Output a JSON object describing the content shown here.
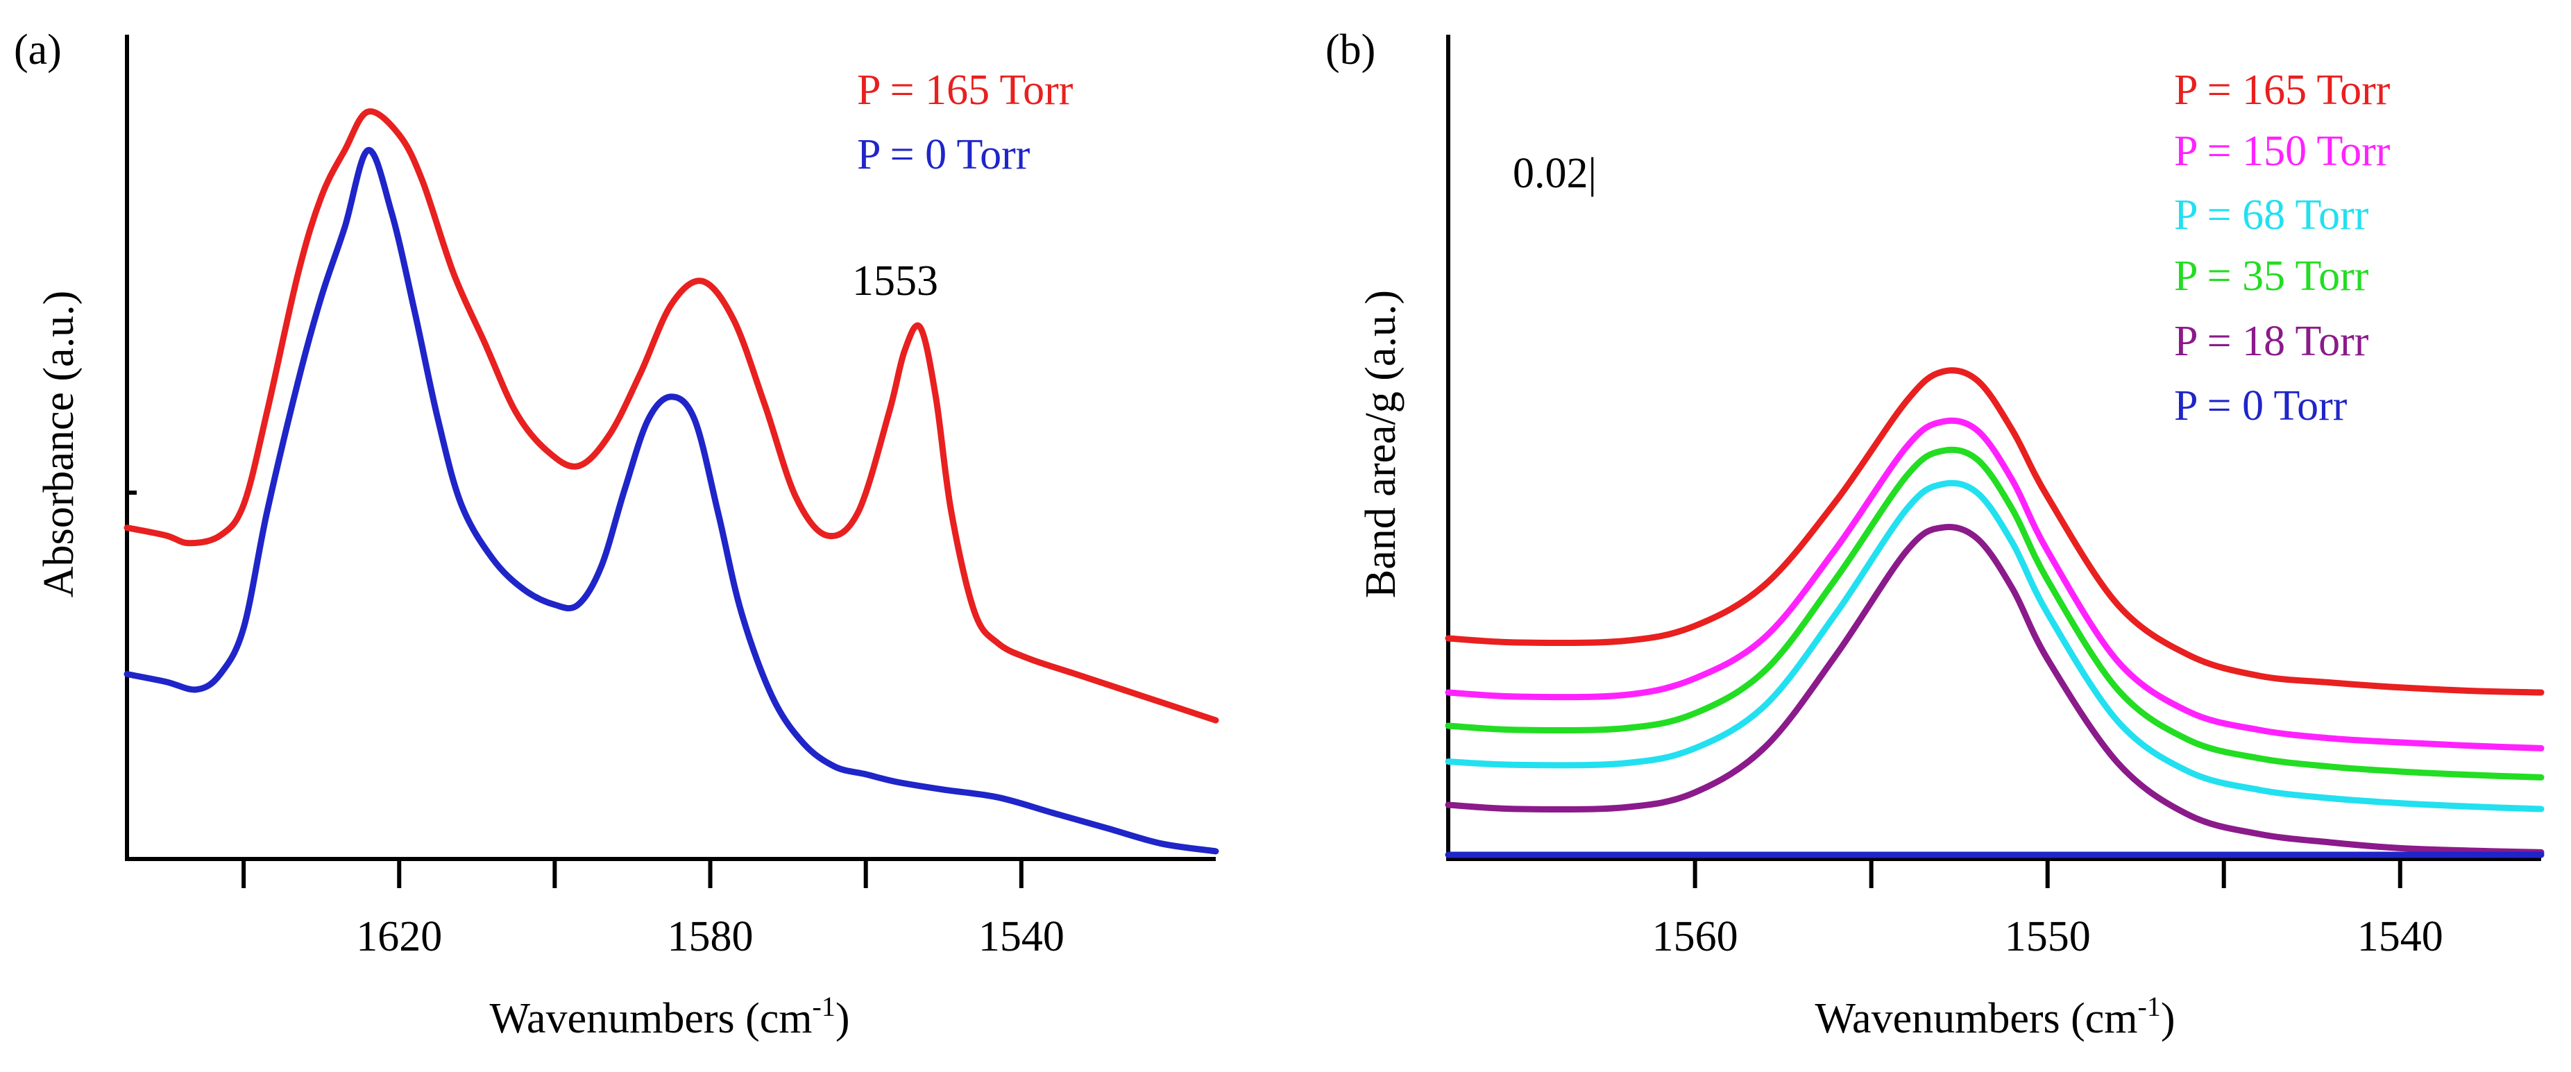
{
  "chart_data": [
    {
      "panel_label": "(a)",
      "type": "line",
      "title": "",
      "xlabel": "Wavenumbers (cm",
      "xlabel_sup": "-1",
      "xlabel_end": ")",
      "ylabel": "Absorbance (a.u.)",
      "xlim": [
        1655,
        1515
      ],
      "ylim": [
        0.0,
        1.07
      ],
      "grid": false,
      "legend_position": "top-right",
      "xticks_major": [
        1620,
        1580,
        1540
      ],
      "xticks_minor": [
        1640,
        1600,
        1560
      ],
      "xtick_labels": [
        "1620",
        "1580",
        "1540"
      ],
      "yticks": [],
      "annotations": [
        {
          "text": "1553",
          "x": 1553,
          "y": 0.73
        }
      ],
      "series": [
        {
          "name": "P = 165 Torr",
          "color": "#e8201f",
          "x": [
            1655,
            1650,
            1647,
            1643,
            1640,
            1637,
            1633,
            1630,
            1627,
            1624,
            1620,
            1617,
            1613,
            1609,
            1605,
            1601,
            1597,
            1593,
            1589,
            1585,
            1581,
            1577,
            1573,
            1569,
            1565,
            1561,
            1557,
            1555,
            1553,
            1551,
            1549,
            1546,
            1543,
            1539,
            1533,
            1527,
            1521,
            1515
          ],
          "y": [
            0.43,
            0.42,
            0.41,
            0.42,
            0.46,
            0.58,
            0.76,
            0.86,
            0.92,
            0.97,
            0.94,
            0.88,
            0.76,
            0.67,
            0.58,
            0.53,
            0.51,
            0.55,
            0.63,
            0.72,
            0.75,
            0.7,
            0.59,
            0.47,
            0.42,
            0.45,
            0.58,
            0.66,
            0.69,
            0.6,
            0.45,
            0.32,
            0.28,
            0.26,
            0.24,
            0.22,
            0.2,
            0.18
          ]
        },
        {
          "name": "P = 0 Torr",
          "color": "#1f25c8",
          "x": [
            1655,
            1650,
            1646,
            1643,
            1640,
            1637,
            1633,
            1630,
            1627,
            1624,
            1621,
            1618,
            1615,
            1612,
            1608,
            1604,
            1600,
            1597,
            1594,
            1591,
            1588,
            1585,
            1582,
            1579,
            1576,
            1572,
            1568,
            1564,
            1560,
            1556,
            1550,
            1543,
            1536,
            1529,
            1522,
            1515
          ],
          "y": [
            0.24,
            0.23,
            0.22,
            0.24,
            0.3,
            0.45,
            0.62,
            0.73,
            0.82,
            0.92,
            0.84,
            0.71,
            0.57,
            0.46,
            0.39,
            0.35,
            0.33,
            0.33,
            0.38,
            0.48,
            0.57,
            0.6,
            0.57,
            0.45,
            0.32,
            0.21,
            0.15,
            0.12,
            0.11,
            0.1,
            0.09,
            0.08,
            0.06,
            0.04,
            0.02,
            0.01
          ]
        }
      ]
    },
    {
      "panel_label": "(b)",
      "type": "line",
      "title": "",
      "xlabel": "Wavenumbers (cm",
      "xlabel_sup": "-1",
      "xlabel_end": ")",
      "ylabel": "Band area/g (a.u.)",
      "xlim": [
        1567,
        1536
      ],
      "ylim": [
        -0.0005,
        0.0985
      ],
      "grid": false,
      "legend_position": "top-right",
      "xticks_major": [
        1560,
        1550,
        1540
      ],
      "xticks_minor": [
        1555,
        1545
      ],
      "xtick_labels": [
        "1560",
        "1550",
        "1540"
      ],
      "yticks": [],
      "annotations": [
        {
          "text": "0.02|",
          "x": 1560,
          "y": 0.0795
        }
      ],
      "series": [
        {
          "name": "P = 165 Torr",
          "color": "#e8201f",
          "x": [
            1567,
            1565,
            1562,
            1560,
            1558,
            1556,
            1554,
            1553,
            1552,
            1551,
            1550,
            1548,
            1546,
            1544,
            1542,
            1540,
            1538,
            1536
          ],
          "y": [
            0.026,
            0.0255,
            0.0257,
            0.0275,
            0.0325,
            0.0425,
            0.0545,
            0.058,
            0.057,
            0.051,
            0.043,
            0.03,
            0.024,
            0.0215,
            0.0207,
            0.0201,
            0.0197,
            0.0195
          ]
        },
        {
          "name": "P = 150 Torr",
          "color": "#ff22ff",
          "x": [
            1567,
            1565,
            1562,
            1560,
            1558,
            1556,
            1554,
            1553,
            1552,
            1551,
            1550,
            1548,
            1546,
            1544,
            1542,
            1540,
            1538,
            1536
          ],
          "y": [
            0.0195,
            0.019,
            0.0192,
            0.0212,
            0.0262,
            0.0368,
            0.049,
            0.052,
            0.051,
            0.045,
            0.0365,
            0.0232,
            0.0172,
            0.015,
            0.014,
            0.0135,
            0.0131,
            0.0128
          ]
        },
        {
          "name": "P = 68 Torr",
          "color": "#22e0f0",
          "x": [
            1567,
            1565,
            1562,
            1560,
            1558,
            1556,
            1554,
            1553,
            1552,
            1551,
            1550,
            1548,
            1546,
            1544,
            1542,
            1540,
            1538,
            1536
          ],
          "y": [
            0.0112,
            0.0108,
            0.011,
            0.0128,
            0.018,
            0.029,
            0.0415,
            0.0445,
            0.0435,
            0.0375,
            0.029,
            0.016,
            0.01,
            0.0078,
            0.0068,
            0.0062,
            0.0058,
            0.0055
          ]
        },
        {
          "name": "P = 35 Torr",
          "color": "#22dd22",
          "x": [
            1567,
            1565,
            1562,
            1560,
            1558,
            1556,
            1554,
            1553,
            1552,
            1551,
            1550,
            1548,
            1546,
            1544,
            1542,
            1540,
            1538,
            1536
          ],
          "y": [
            0.0155,
            0.015,
            0.0152,
            0.017,
            0.0222,
            0.0332,
            0.0455,
            0.0485,
            0.0475,
            0.0415,
            0.033,
            0.0198,
            0.0138,
            0.0116,
            0.0106,
            0.01,
            0.0096,
            0.0093
          ]
        },
        {
          "name": "P = 18 Torr",
          "color": "#8b1a8b",
          "x": [
            1567,
            1565,
            1562,
            1560,
            1558,
            1556,
            1554,
            1553,
            1552,
            1551,
            1550,
            1548,
            1546,
            1544,
            1542,
            1540,
            1538,
            1536
          ],
          "y": [
            0.006,
            0.0055,
            0.0057,
            0.0075,
            0.013,
            0.024,
            0.0365,
            0.0393,
            0.038,
            0.032,
            0.0235,
            0.011,
            0.0048,
            0.0025,
            0.0015,
            0.0008,
            0.0005,
            0.0003
          ]
        },
        {
          "name": "P = 0 Torr",
          "color": "#1f25c8",
          "x": [
            1567,
            1536
          ],
          "y": [
            0.0,
            0.0
          ]
        }
      ]
    }
  ]
}
